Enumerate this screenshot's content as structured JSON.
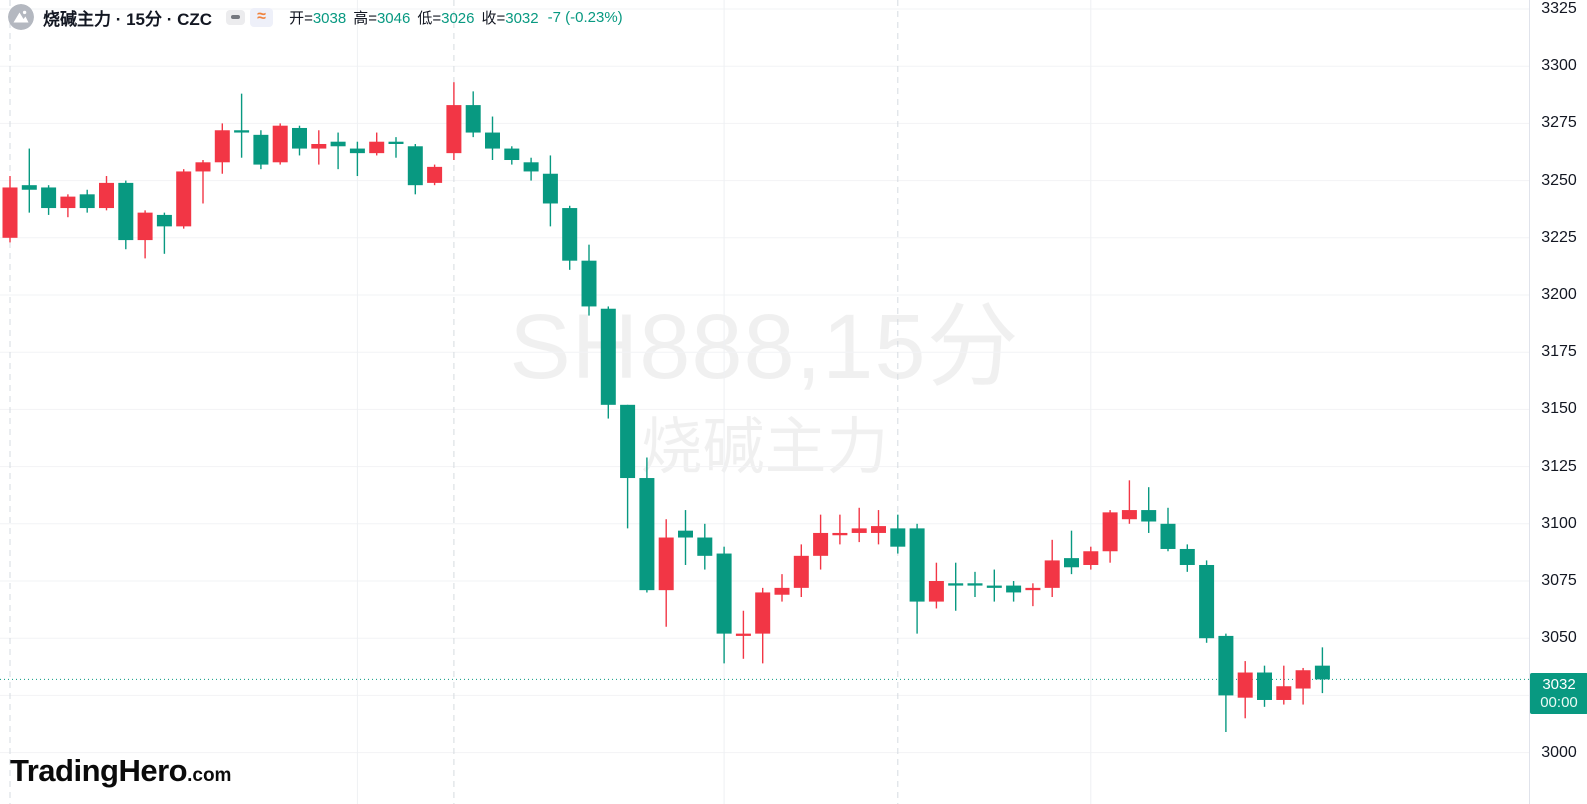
{
  "header": {
    "symbol_title": "烧碱主力 · 15分 · CZC",
    "buttons": {
      "minus_icon": "minus-icon",
      "approx_glyph": "≈"
    },
    "ohlc": {
      "items": [
        {
          "label": "开=",
          "value": "3038"
        },
        {
          "label": "高=",
          "value": "3046"
        },
        {
          "label": "低=",
          "value": "3026"
        },
        {
          "label": "收=",
          "value": "3032"
        }
      ],
      "change": "-7 (-0.23%)"
    }
  },
  "watermark": {
    "line1": "SH888,15分",
    "line2": "烧碱主力"
  },
  "logo": {
    "brand": "TradingHero",
    "suffix": ".com"
  },
  "colors": {
    "up": "#f23645",
    "down": "#089981",
    "badge": "#089981",
    "axis_text": "#131722",
    "grid_h": "#f2f3f5",
    "grid_v_solid": "#eef0f3",
    "grid_v_dashed": "#d6dbe0"
  },
  "chart_data": {
    "type": "candlestick",
    "title": "烧碱主力 15分",
    "symbol_watermark": "SH888,15分",
    "exchange": "CZC",
    "interval": "15分",
    "up_color": "#f23645",
    "down_color": "#089981",
    "y_axis": {
      "min": 3000,
      "max": 3325,
      "grid_step": 25,
      "ticks": [
        3325,
        3300,
        3275,
        3250,
        3225,
        3200,
        3175,
        3150,
        3125,
        3100,
        3075,
        3050,
        3000
      ]
    },
    "last_price": 3032,
    "last_price_label": "3032",
    "countdown": "00:00",
    "session_breaks": {
      "dashed_at": [
        0,
        23,
        46
      ],
      "solid_at": [
        18,
        37,
        56
      ]
    },
    "candles": [
      [
        3225,
        3252,
        3223,
        3247
      ],
      [
        3248,
        3264,
        3236,
        3246
      ],
      [
        3247,
        3248,
        3235,
        3238
      ],
      [
        3238,
        3244,
        3234,
        3243
      ],
      [
        3244,
        3246,
        3236,
        3238
      ],
      [
        3238,
        3252,
        3237,
        3249
      ],
      [
        3249,
        3250,
        3220,
        3224
      ],
      [
        3224,
        3237,
        3216,
        3236
      ],
      [
        3235,
        3236,
        3218,
        3230
      ],
      [
        3230,
        3255,
        3229,
        3254
      ],
      [
        3254,
        3259,
        3240,
        3258
      ],
      [
        3258,
        3275,
        3253,
        3272
      ],
      [
        3272,
        3288,
        3260,
        3271
      ],
      [
        3270,
        3272,
        3255,
        3257
      ],
      [
        3258,
        3275,
        3257,
        3274
      ],
      [
        3273,
        3274,
        3261,
        3264
      ],
      [
        3264,
        3272,
        3257,
        3266
      ],
      [
        3267,
        3271,
        3255,
        3265
      ],
      [
        3264,
        3267,
        3252,
        3262
      ],
      [
        3262,
        3271,
        3261,
        3267
      ],
      [
        3267,
        3269,
        3260,
        3266
      ],
      [
        3265,
        3266,
        3244,
        3248
      ],
      [
        3249,
        3257,
        3248,
        3256
      ],
      [
        3262,
        3293,
        3259,
        3283
      ],
      [
        3283,
        3289,
        3269,
        3271
      ],
      [
        3271,
        3278,
        3259,
        3264
      ],
      [
        3264,
        3265,
        3257,
        3259
      ],
      [
        3258,
        3260,
        3250,
        3254
      ],
      [
        3253,
        3261,
        3230,
        3240
      ],
      [
        3238,
        3239,
        3211,
        3215
      ],
      [
        3215,
        3222,
        3191,
        3195
      ],
      [
        3194,
        3195,
        3146,
        3152
      ],
      [
        3152,
        3152,
        3098,
        3120
      ],
      [
        3120,
        3129,
        3070,
        3071
      ],
      [
        3071,
        3102,
        3055,
        3094
      ],
      [
        3097,
        3106,
        3082,
        3094
      ],
      [
        3094,
        3100,
        3080,
        3086
      ],
      [
        3087,
        3090,
        3039,
        3052
      ],
      [
        3051,
        3062,
        3041,
        3052
      ],
      [
        3052,
        3072,
        3039,
        3070
      ],
      [
        3069,
        3078,
        3066,
        3072
      ],
      [
        3072,
        3091,
        3068,
        3086
      ],
      [
        3086,
        3104,
        3080,
        3096
      ],
      [
        3095,
        3104,
        3091,
        3096
      ],
      [
        3096,
        3107,
        3092,
        3098
      ],
      [
        3096,
        3106,
        3091,
        3099
      ],
      [
        3098,
        3104,
        3087,
        3090
      ],
      [
        3098,
        3100,
        3052,
        3066
      ],
      [
        3066,
        3083,
        3063,
        3075
      ],
      [
        3074,
        3083,
        3062,
        3073
      ],
      [
        3074,
        3079,
        3068,
        3073
      ],
      [
        3073,
        3080,
        3066,
        3072
      ],
      [
        3073,
        3075,
        3066,
        3070
      ],
      [
        3071,
        3074,
        3064,
        3072
      ],
      [
        3072,
        3093,
        3068,
        3084
      ],
      [
        3085,
        3097,
        3078,
        3081
      ],
      [
        3082,
        3090,
        3080,
        3088
      ],
      [
        3088,
        3106,
        3083,
        3105
      ],
      [
        3102,
        3119,
        3100,
        3106
      ],
      [
        3106,
        3116,
        3096,
        3101
      ],
      [
        3100,
        3107,
        3088,
        3089
      ],
      [
        3089,
        3091,
        3079,
        3082
      ],
      [
        3082,
        3084,
        3048,
        3050
      ],
      [
        3051,
        3052,
        3009,
        3025
      ],
      [
        3024,
        3040,
        3015,
        3035
      ],
      [
        3035,
        3038,
        3020,
        3023
      ],
      [
        3023,
        3038,
        3021,
        3029
      ],
      [
        3028,
        3037,
        3021,
        3036
      ],
      [
        3038,
        3046,
        3026,
        3032
      ]
    ]
  }
}
